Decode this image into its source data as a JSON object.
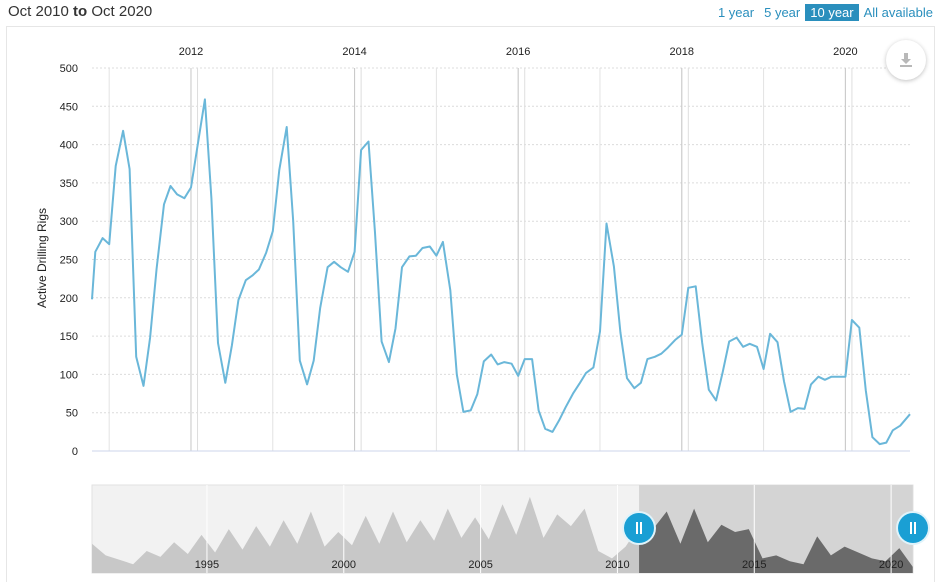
{
  "header": {
    "range_from": "Oct 2010",
    "range_to_word": "to",
    "range_to": "Oct 2020",
    "buttons": [
      {
        "label": "1 year",
        "active": false
      },
      {
        "label": "5 year",
        "active": false
      },
      {
        "label": "10 year",
        "active": true
      },
      {
        "label": "All available",
        "active": false
      }
    ]
  },
  "icons": {
    "download": "download-icon",
    "handle": "drag-handle-icon"
  },
  "colors": {
    "line": "#6ab7d9",
    "accent": "#2a8fbd",
    "navigator_fill": "#c8c8c8",
    "navigator_selected_fill": "#6a6a6a"
  },
  "chart_data": [
    {
      "type": "line",
      "title": "",
      "xlabel": "",
      "ylabel": "Active Drilling Rigs",
      "x_range": [
        2010.79,
        2020.79
      ],
      "ylim": [
        0,
        500
      ],
      "yticks": [
        0,
        50,
        100,
        150,
        200,
        250,
        300,
        350,
        400,
        450,
        500
      ],
      "xticks": [
        "2012",
        "2014",
        "2016",
        "2018",
        "2020"
      ],
      "grid": true,
      "x": [
        2010.79,
        2010.83,
        2010.92,
        2011.0,
        2011.08,
        2011.17,
        2011.25,
        2011.33,
        2011.42,
        2011.5,
        2011.58,
        2011.67,
        2011.75,
        2011.83,
        2011.92,
        2012.0,
        2012.08,
        2012.17,
        2012.25,
        2012.33,
        2012.42,
        2012.5,
        2012.58,
        2012.67,
        2012.75,
        2012.83,
        2012.92,
        2013.0,
        2013.08,
        2013.17,
        2013.25,
        2013.33,
        2013.42,
        2013.5,
        2013.58,
        2013.67,
        2013.75,
        2013.83,
        2013.92,
        2014.0,
        2014.08,
        2014.17,
        2014.25,
        2014.33,
        2014.42,
        2014.5,
        2014.58,
        2014.67,
        2014.75,
        2014.83,
        2014.92,
        2015.0,
        2015.08,
        2015.17,
        2015.25,
        2015.33,
        2015.42,
        2015.5,
        2015.58,
        2015.67,
        2015.75,
        2015.83,
        2015.92,
        2016.0,
        2016.08,
        2016.17,
        2016.25,
        2016.33,
        2016.42,
        2016.5,
        2016.58,
        2016.67,
        2016.75,
        2016.83,
        2016.92,
        2017.0,
        2017.08,
        2017.17,
        2017.25,
        2017.33,
        2017.42,
        2017.5,
        2017.58,
        2017.67,
        2017.75,
        2017.83,
        2017.92,
        2018.0,
        2018.08,
        2018.17,
        2018.25,
        2018.33,
        2018.42,
        2018.5,
        2018.58,
        2018.67,
        2018.75,
        2018.83,
        2018.92,
        2019.0,
        2019.08,
        2019.17,
        2019.25,
        2019.33,
        2019.42,
        2019.5,
        2019.58,
        2019.67,
        2019.75,
        2019.83,
        2019.92,
        2020.0,
        2020.08,
        2020.17,
        2020.25,
        2020.33,
        2020.42,
        2020.5,
        2020.58,
        2020.67,
        2020.79
      ],
      "series": [
        {
          "name": "",
          "values": [
            198,
            260,
            278,
            270,
            372,
            418,
            368,
            123,
            85,
            148,
            238,
            322,
            346,
            335,
            330,
            344,
            398,
            459,
            330,
            141,
            89,
            138,
            197,
            223,
            229,
            237,
            259,
            287,
            367,
            423,
            300,
            118,
            87,
            118,
            187,
            240,
            247,
            240,
            234,
            260,
            393,
            404,
            285,
            143,
            116,
            160,
            240,
            254,
            255,
            265,
            267,
            255,
            273,
            210,
            100,
            51,
            53,
            74,
            117,
            126,
            113,
            116,
            114,
            98,
            120,
            120,
            53,
            29,
            25,
            40,
            57,
            75,
            88,
            102,
            109,
            156,
            297,
            241,
            155,
            95,
            82,
            89,
            120,
            123,
            127,
            135,
            145,
            152,
            213,
            215,
            141,
            80,
            66,
            103,
            143,
            148,
            136,
            140,
            136,
            107,
            153,
            142,
            91,
            51,
            56,
            55,
            87,
            97,
            93,
            97,
            97,
            97,
            171,
            161,
            79,
            18,
            9,
            11,
            27,
            33,
            48
          ]
        }
      ]
    },
    {
      "type": "area",
      "title": "",
      "xlabel": "",
      "ylabel": "",
      "x_range": [
        1990.8,
        2020.8
      ],
      "selected_range": [
        2010.79,
        2020.79
      ],
      "xticks": [
        "1995",
        "2000",
        "2005",
        "2010",
        "2015",
        "2020"
      ],
      "x": [
        1990.8,
        1991.3,
        1991.8,
        1992.3,
        1992.8,
        1993.3,
        1993.8,
        1994.3,
        1994.8,
        1995.3,
        1995.8,
        1996.3,
        1996.8,
        1997.3,
        1997.8,
        1998.3,
        1998.8,
        1999.3,
        1999.8,
        2000.3,
        2000.8,
        2001.3,
        2001.8,
        2002.3,
        2002.8,
        2003.3,
        2003.8,
        2004.3,
        2004.8,
        2005.3,
        2005.8,
        2006.3,
        2006.8,
        2007.3,
        2007.8,
        2008.3,
        2008.8,
        2009.3,
        2009.8,
        2010.3,
        2010.8,
        2011.3,
        2011.8,
        2012.3,
        2012.8,
        2013.3,
        2013.8,
        2014.3,
        2014.8,
        2015.3,
        2015.8,
        2016.3,
        2016.8,
        2017.3,
        2017.8,
        2018.3,
        2018.8,
        2019.3,
        2019.8,
        2020.3,
        2020.8
      ],
      "series": [
        {
          "name": "",
          "values": [
            200,
            120,
            90,
            60,
            150,
            110,
            210,
            130,
            260,
            140,
            300,
            160,
            320,
            180,
            360,
            200,
            420,
            180,
            280,
            190,
            390,
            200,
            420,
            210,
            360,
            220,
            440,
            240,
            380,
            230,
            470,
            260,
            520,
            240,
            400,
            320,
            440,
            150,
            100,
            180,
            320,
            300,
            420,
            200,
            440,
            210,
            330,
            280,
            300,
            100,
            120,
            80,
            60,
            250,
            120,
            180,
            140,
            100,
            80,
            170,
            40
          ]
        }
      ]
    }
  ]
}
